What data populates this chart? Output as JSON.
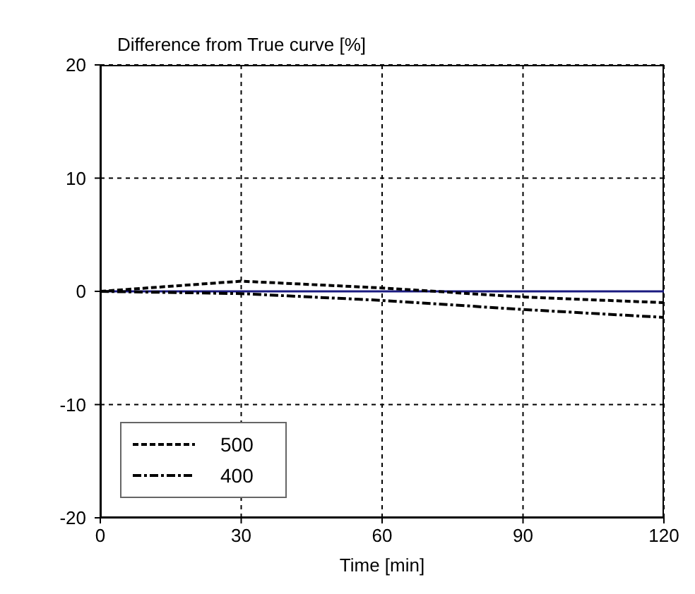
{
  "chart_data": {
    "type": "line",
    "ylabel": "Difference from True curve [%]",
    "xlabel": "Time [min]",
    "x": [
      0,
      30,
      60,
      90,
      120
    ],
    "series": [
      {
        "color": "#1a1a80",
        "line_style": "solid",
        "values": [
          0,
          0,
          0,
          0,
          0
        ]
      },
      {
        "name": "500",
        "color": "#000000",
        "line_style": "dashed",
        "values": [
          0,
          0.9,
          0.3,
          -0.5,
          -1
        ]
      },
      {
        "name": "400",
        "color": "#000000",
        "line_style": "dashdot",
        "values": [
          0,
          -0.2,
          -0.8,
          -1.6,
          -2.3
        ]
      }
    ],
    "xlim": [
      0,
      120
    ],
    "xticks": [
      0,
      30,
      60,
      90,
      120
    ],
    "ylim": [
      -20,
      20
    ],
    "yticks": [
      -20,
      -10,
      0,
      10,
      20
    ],
    "grid": true,
    "legend": "bottom left",
    "marker": "none"
  }
}
